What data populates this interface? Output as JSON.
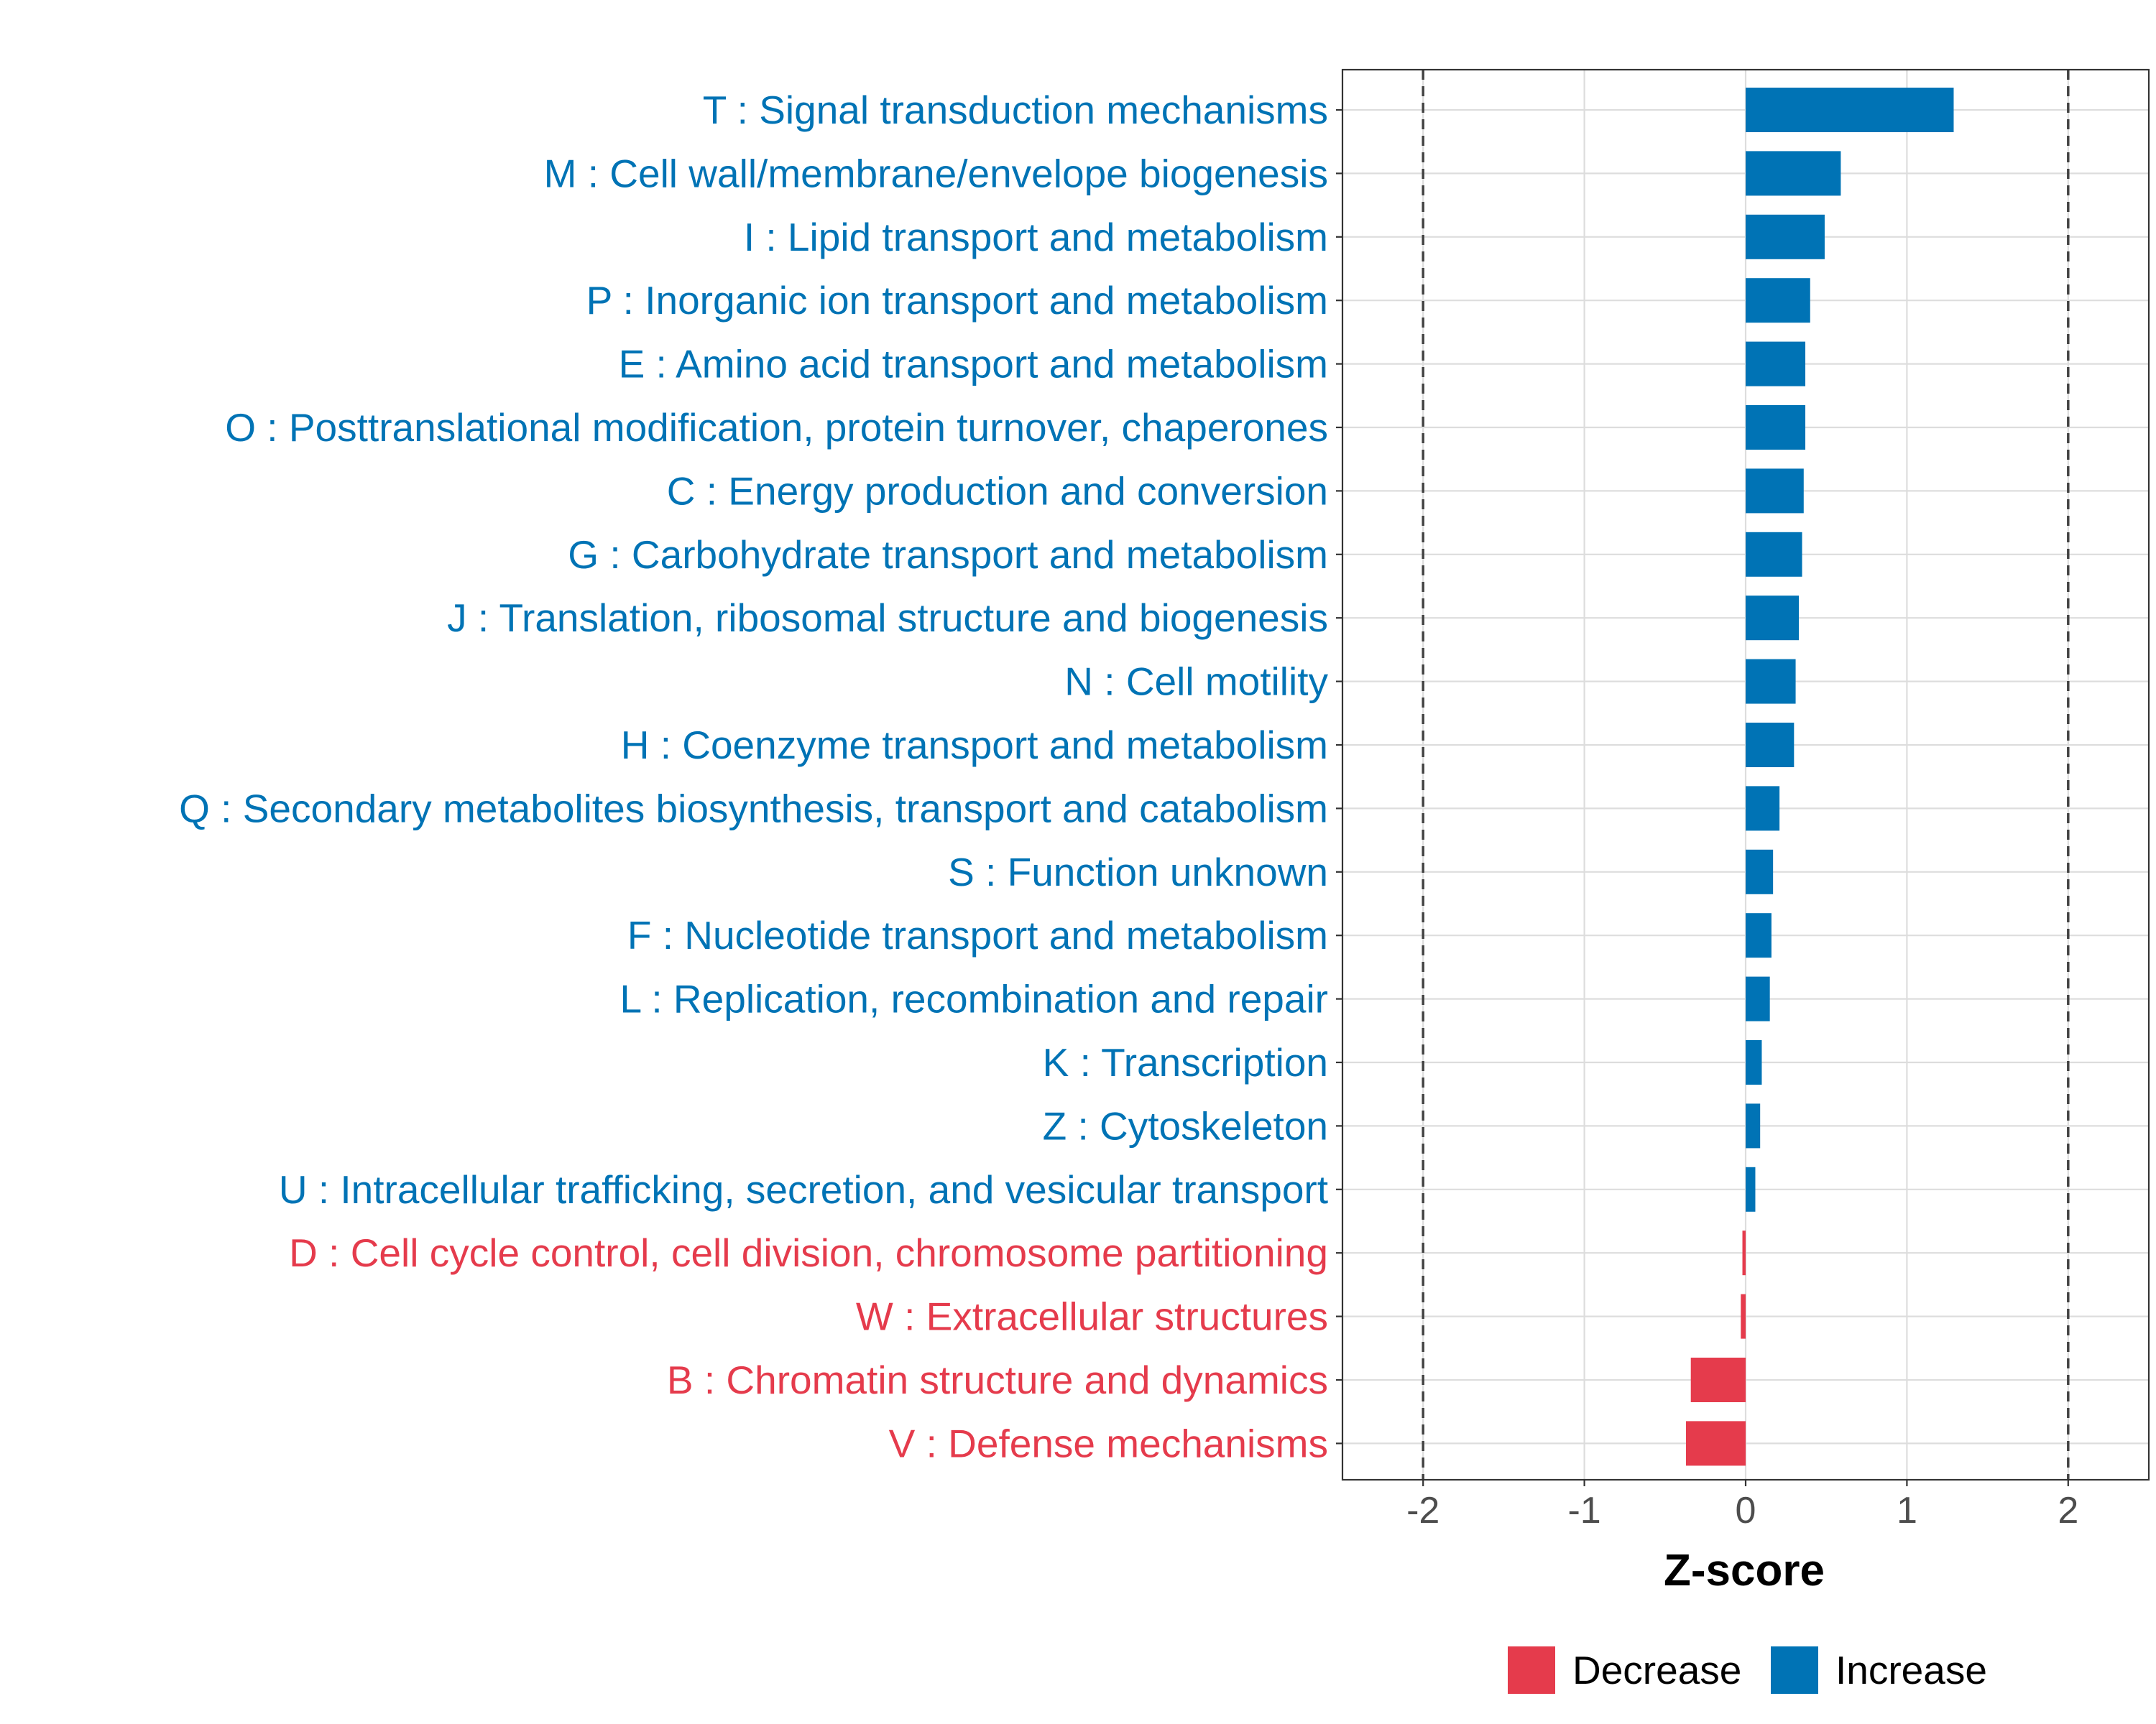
{
  "chart_data": {
    "type": "bar",
    "orientation": "horizontal",
    "title": "",
    "xlabel": "Z-score",
    "ylabel": "",
    "xlim": [
      -2.5,
      2.5
    ],
    "xticks": [
      -2,
      -1,
      0,
      1,
      2
    ],
    "xtick_labels": [
      "-2",
      "-1",
      "0",
      "1",
      "2"
    ],
    "reference_lines": [
      -2,
      2
    ],
    "grid": true,
    "colors": {
      "Increase": "#0073B5",
      "Decrease": "#E53B4C"
    },
    "legend": {
      "placement": "bottom",
      "entries": [
        {
          "label": "Decrease",
          "color": "#E53B4C"
        },
        {
          "label": "Increase",
          "color": "#0073B5"
        }
      ]
    },
    "categories": [
      "T : Signal transduction mechanisms",
      "M : Cell wall/membrane/envelope biogenesis",
      "I : Lipid transport and metabolism",
      "P : Inorganic ion transport and metabolism",
      "E : Amino acid transport and metabolism",
      "O : Posttranslational modification, protein turnover, chaperones",
      "C : Energy production and conversion",
      "G : Carbohydrate transport and metabolism",
      "J : Translation, ribosomal structure and biogenesis",
      "N : Cell motility",
      "H : Coenzyme transport and metabolism",
      "Q : Secondary metabolites biosynthesis, transport and catabolism",
      "S : Function unknown",
      "F : Nucleotide transport and metabolism",
      "L : Replication, recombination and repair",
      "K : Transcription",
      "Z : Cytoskeleton",
      "U : Intracellular trafficking, secretion, and vesicular transport",
      "D : Cell cycle control, cell division, chromosome partitioning",
      "W : Extracellular structures",
      "B : Chromatin structure and dynamics",
      "V : Defense mechanisms"
    ],
    "values": [
      1.29,
      0.59,
      0.49,
      0.4,
      0.37,
      0.37,
      0.36,
      0.35,
      0.33,
      0.31,
      0.3,
      0.21,
      0.17,
      0.16,
      0.15,
      0.1,
      0.09,
      0.06,
      -0.02,
      -0.03,
      -0.34,
      -0.37
    ],
    "groups": [
      "Increase",
      "Increase",
      "Increase",
      "Increase",
      "Increase",
      "Increase",
      "Increase",
      "Increase",
      "Increase",
      "Increase",
      "Increase",
      "Increase",
      "Increase",
      "Increase",
      "Increase",
      "Increase",
      "Increase",
      "Increase",
      "Decrease",
      "Decrease",
      "Decrease",
      "Decrease"
    ]
  }
}
